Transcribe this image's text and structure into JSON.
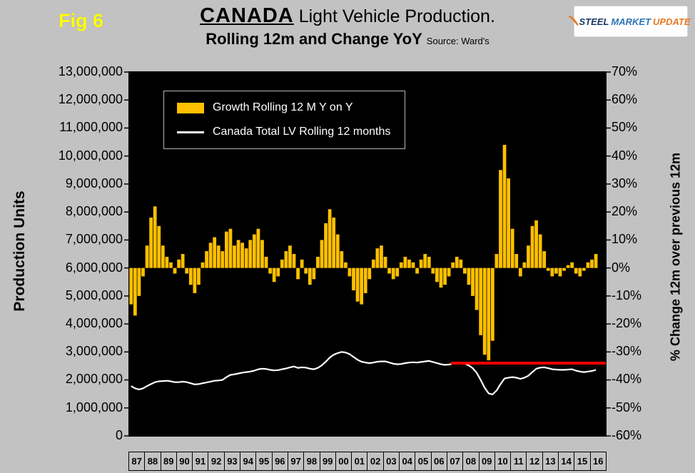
{
  "figure_label": "Fig 6",
  "title": {
    "emph": "CANADA",
    "rest": " Light Vehicle Production.",
    "line2": "Rolling 12m and Change YoY",
    "source": "Source: Ward's"
  },
  "logo": {
    "word1": "STEEL",
    "word2": "MARKET",
    "word3": "UPDATE"
  },
  "axes": {
    "left_title": "Production Units",
    "right_title": "% Change 12m over previous 12m",
    "left_ticks": [
      "13,000,000",
      "12,000,000",
      "11,000,000",
      "10,000,000",
      "9,000,000",
      "8,000,000",
      "7,000,000",
      "6,000,000",
      "5,000,000",
      "4,000,000",
      "3,000,000",
      "2,000,000",
      "1,000,000",
      "0"
    ],
    "right_ticks": [
      "70%",
      "60%",
      "50%",
      "40%",
      "30%",
      "20%",
      "10%",
      "0%",
      "-10%",
      "-20%",
      "-30%",
      "-40%",
      "-50%",
      "-60%"
    ],
    "x_ticks": [
      "87",
      "88",
      "89",
      "90",
      "91",
      "92",
      "93",
      "94",
      "95",
      "96",
      "97",
      "98",
      "99",
      "00",
      "01",
      "02",
      "03",
      "04",
      "05",
      "06",
      "07",
      "08",
      "09",
      "10",
      "11",
      "12",
      "13",
      "14",
      "15",
      "16"
    ]
  },
  "legend": [
    {
      "swatch": "bar",
      "color": "#FFC000",
      "label": "Growth Rolling 12 M Y on Y"
    },
    {
      "swatch": "line",
      "color": "#FFFFFF",
      "label": "Canada Total LV Rolling 12 months"
    }
  ],
  "chart_data": {
    "type": "combo-bar-line",
    "x_unit": "quarter",
    "x_start": "1987Q1",
    "x_end": "2016Q2",
    "left_axis": {
      "label": "Production Units",
      "min": 0,
      "max": 13000000,
      "step": 1000000
    },
    "right_axis": {
      "label": "% Change 12m over previous 12m",
      "min": -60,
      "max": 70,
      "step": 10,
      "unit": "%"
    },
    "plot_background": "#000000",
    "series": [
      {
        "name": "Growth Rolling 12 M Y on Y",
        "type": "bar",
        "axis": "right",
        "unit": "%",
        "color": "#FFC000",
        "values": [
          -13,
          -17,
          -10,
          -3,
          8,
          18,
          22,
          15,
          8,
          4,
          2,
          -2,
          3,
          5,
          -2,
          -6,
          -9,
          -6,
          2,
          6,
          9,
          11,
          8,
          6,
          13,
          14,
          8,
          10,
          9,
          7,
          10,
          12,
          14,
          10,
          4,
          -2,
          -5,
          -3,
          3,
          6,
          8,
          5,
          -4,
          3,
          -2,
          -6,
          -4,
          4,
          10,
          16,
          21,
          18,
          12,
          6,
          2,
          -3,
          -8,
          -12,
          -13,
          -9,
          -4,
          3,
          7,
          8,
          4,
          -2,
          -4,
          -3,
          2,
          4,
          3,
          2,
          -2,
          3,
          5,
          4,
          -2,
          -5,
          -7,
          -6,
          -3,
          2,
          4,
          3,
          -2,
          -6,
          -10,
          -15,
          -24,
          -31,
          -33,
          -26,
          5,
          35,
          44,
          32,
          14,
          5,
          -3,
          2,
          8,
          15,
          17,
          12,
          6,
          -1,
          -3,
          -2,
          -3,
          -1,
          1,
          2,
          -2,
          -3,
          -1,
          2,
          3,
          5
        ]
      },
      {
        "name": "Canada Total LV Rolling 12 months",
        "type": "line",
        "axis": "left",
        "unit": "units",
        "color": "#FFFFFF",
        "values": [
          1780000,
          1700000,
          1660000,
          1700000,
          1780000,
          1850000,
          1920000,
          1950000,
          1960000,
          1970000,
          1950000,
          1920000,
          1920000,
          1940000,
          1920000,
          1880000,
          1840000,
          1850000,
          1880000,
          1910000,
          1940000,
          1970000,
          1980000,
          2000000,
          2100000,
          2180000,
          2200000,
          2230000,
          2260000,
          2280000,
          2300000,
          2330000,
          2380000,
          2400000,
          2390000,
          2360000,
          2340000,
          2350000,
          2380000,
          2410000,
          2450000,
          2480000,
          2430000,
          2450000,
          2440000,
          2400000,
          2380000,
          2430000,
          2520000,
          2650000,
          2800000,
          2900000,
          2960000,
          3000000,
          2980000,
          2920000,
          2820000,
          2720000,
          2650000,
          2620000,
          2600000,
          2620000,
          2650000,
          2660000,
          2660000,
          2620000,
          2580000,
          2560000,
          2570000,
          2600000,
          2620000,
          2630000,
          2620000,
          2640000,
          2660000,
          2680000,
          2640000,
          2600000,
          2560000,
          2540000,
          2550000,
          2580000,
          2600000,
          2600000,
          2580000,
          2520000,
          2420000,
          2250000,
          2000000,
          1720000,
          1520000,
          1480000,
          1620000,
          1850000,
          2050000,
          2080000,
          2100000,
          2080000,
          2040000,
          2080000,
          2150000,
          2280000,
          2400000,
          2440000,
          2450000,
          2420000,
          2380000,
          2370000,
          2360000,
          2360000,
          2370000,
          2380000,
          2330000,
          2300000,
          2280000,
          2300000,
          2320000,
          2360000
        ]
      },
      {
        "name": "reference-level-line",
        "type": "hline",
        "axis": "left",
        "color": "#FF0000",
        "value": 2600000,
        "x_start": "2007Q2",
        "x_end": "2016Q2"
      }
    ]
  }
}
